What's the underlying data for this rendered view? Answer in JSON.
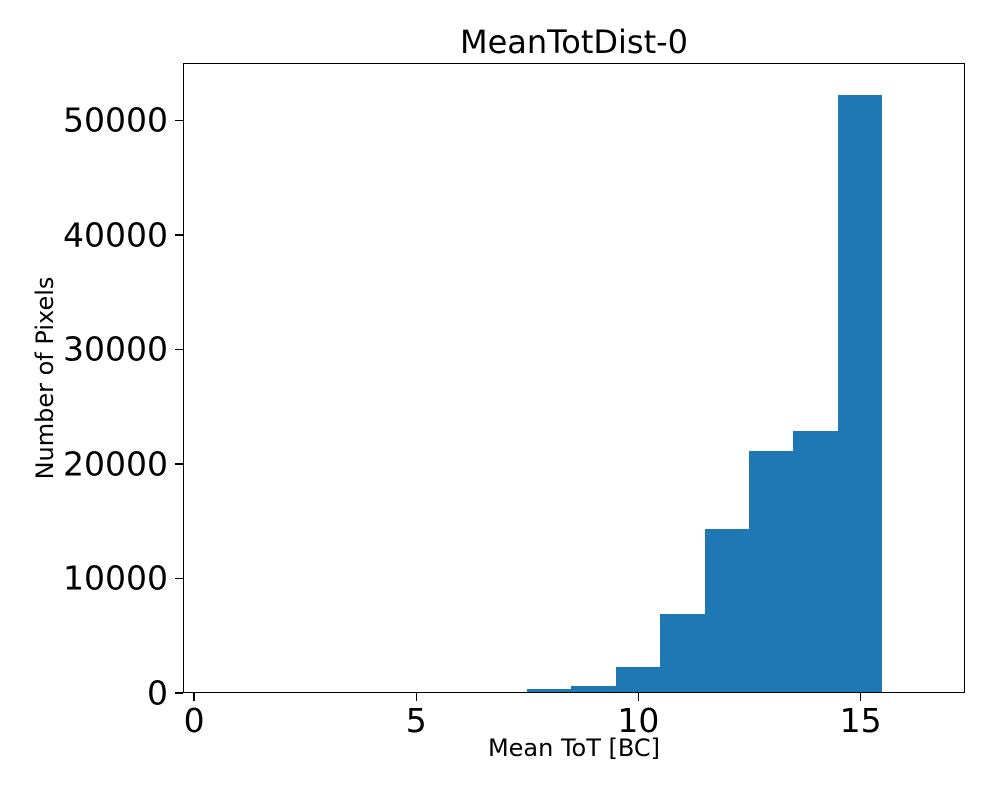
{
  "chart_data": {
    "type": "bar",
    "subtype": "histogram",
    "title": "MeanTotDist-0",
    "xlabel": "Mean ToT [BC]",
    "ylabel": "Number of Pixels",
    "bin_edges": [
      7.5,
      8.5,
      9.5,
      10.5,
      11.5,
      12.5,
      13.5,
      14.5,
      15.5
    ],
    "bin_centers": [
      8,
      9,
      10,
      11,
      12,
      13,
      14,
      15
    ],
    "counts": [
      250,
      500,
      2200,
      6800,
      14200,
      21000,
      22800,
      52100
    ],
    "xlim": [
      -0.25,
      17.35
    ],
    "ylim": [
      0,
      55000
    ],
    "x_ticks": [
      0,
      5,
      10,
      15
    ],
    "y_ticks": [
      0,
      10000,
      20000,
      30000,
      40000,
      50000
    ],
    "bar_color": "#1f77b4",
    "spine_color": "#000000",
    "grid": false,
    "legend_position": "none"
  }
}
